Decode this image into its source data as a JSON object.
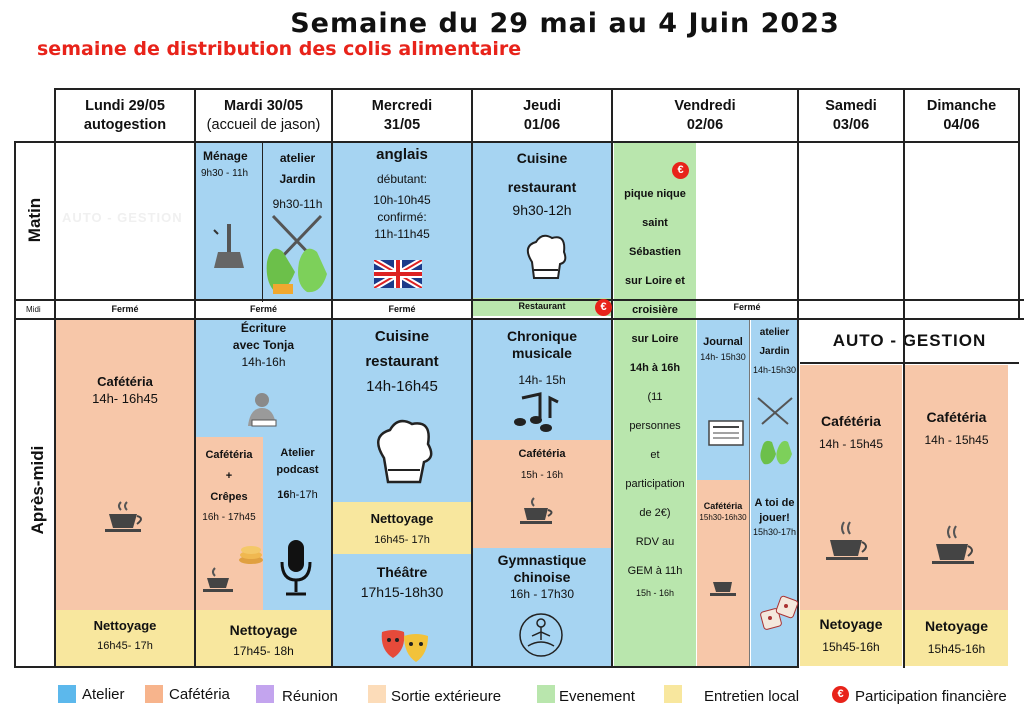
{
  "title": "Semaine du 29 mai au 4 Juin 2023",
  "subtitle": "semaine de distribution des colis alimentaire",
  "days": [
    {
      "l1": "Lundi 29/05",
      "l2": "autogestion"
    },
    {
      "l1": "Mardi 30/05",
      "l2": "(accueil de jason)"
    },
    {
      "l1": "Mercredi",
      "l2": "31/05"
    },
    {
      "l1": "Jeudi",
      "l2": "01/06"
    },
    {
      "l1": "Vendredi",
      "l2": "02/06"
    },
    {
      "l1": "Samedi",
      "l2": "03/06"
    },
    {
      "l1": "Dimanche",
      "l2": "04/06"
    }
  ],
  "rows": {
    "matin": "Matin",
    "midi": "Midi",
    "apresmidi": "Après-midi"
  },
  "ferme": "Fermé",
  "lundi": {
    "matin_faded": "AUTO - GESTION",
    "cafeteria": "Cafétéria",
    "cafeteria_time": "14h- 16h45",
    "nettoyage": "Nettoyage",
    "nettoyage_time": "16h45- 17h"
  },
  "mardi": {
    "menage": "Ménage",
    "menage_time": "9h30 - 11h",
    "jardin_1": "atelier",
    "jardin_2": "Jardin",
    "jardin_time": "9h30-11h",
    "ecriture_1": "Écriture",
    "ecriture_2": "avec Tonja",
    "ecriture_time": "14h-16h",
    "caf_1": "Cafétéria",
    "caf_2": "+",
    "caf_3": "Crêpes",
    "caf_time": "16h - 17h45",
    "podcast_1": "Atelier",
    "podcast_2": "podcast",
    "podcast_time_b": "16",
    "podcast_time": "h-17h",
    "nettoyage": "Nettoyage",
    "nettoyage_time": "17h45- 18h"
  },
  "mercredi": {
    "anglais": "anglais",
    "debutant": "débutant:",
    "debutant_time": "10h-10h45",
    "confirme": "confirmé:",
    "confirme_time": "11h-11h45",
    "cuisine_1": "Cuisine",
    "cuisine_2": "restaurant",
    "cuisine_time": "14h-16h45",
    "nettoyage": "Nettoyage",
    "nettoyage_time": "16h45- 17h",
    "theatre": "Théâtre",
    "theatre_time": "17h15-18h30"
  },
  "jeudi": {
    "cuisine_1": "Cuisine",
    "cuisine_2": "restaurant",
    "cuisine_time": "9h30-12h",
    "restaurant": "Restaurant",
    "chronique_1": "Chronique",
    "chronique_2": "musicale",
    "chronique_time": "14h- 15h",
    "cafeteria": "Cafétéria",
    "cafeteria_time": "15h - 16h",
    "gym_1": "Gymnastique",
    "gym_2": "chinoise",
    "gym_time": "16h - 17h30"
  },
  "vendredi": {
    "lines_bold": [
      "pique nique",
      "saint",
      "Sébastien",
      "sur Loire et",
      "croisière",
      "sur Loire",
      "14h à 16h"
    ],
    "lines_normal": [
      "(11",
      "personnes",
      "et",
      "participation",
      "de 2€)",
      "RDV au",
      "GEM à 11h"
    ],
    "end_time": "15h - 16h",
    "journal": "Journal",
    "journal_time": "14h- 15h30",
    "jardin_1": "atelier",
    "jardin_2": "Jardin",
    "jardin_time": "14h-15h30",
    "caf": "Cafétéria",
    "caf_time": "15h30-16h30",
    "jouer_1": "A toi de",
    "jouer_2": "jouer!",
    "jouer_time": "15h30-17h"
  },
  "weekend": {
    "auto": "AUTO - GESTION",
    "cafeteria": "Cafétéria",
    "cafeteria_time": "14h - 15h45",
    "netoyage": "Netoyage",
    "netoyage_time": "15h45-16h"
  },
  "euro_symbol": "€",
  "legend": [
    {
      "label": "Atelier",
      "color": "#5cb8ec"
    },
    {
      "label": "Cafétéria",
      "color": "#f7b48c"
    },
    {
      "label": "Réunion",
      "color": "#c3a4ee"
    },
    {
      "label": "Sortie extérieure",
      "color": "#fcdcb9"
    },
    {
      "label": "Evenement",
      "color": "#b9e6ad"
    },
    {
      "label": "Entretien local",
      "color": "#f8e79e"
    },
    {
      "label": "Participation financière",
      "color": "#e8231a"
    }
  ]
}
